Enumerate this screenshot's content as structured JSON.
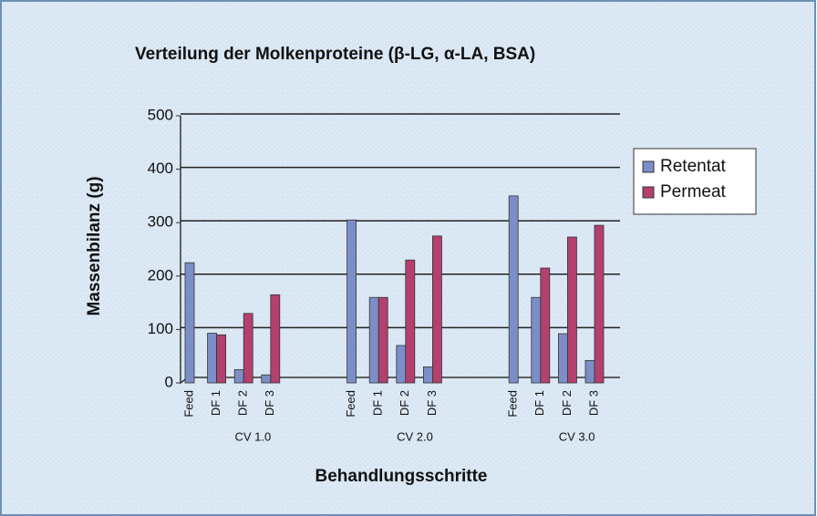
{
  "chart_data": {
    "type": "bar",
    "title": "Verteilung der Molkenproteine (β-LG, α-LA, BSA)",
    "y_label": "Massenbilanz (g)",
    "x_label": "Behandlungsschritte",
    "groups": [
      "CV 1.0",
      "CV 2.0",
      "CV 3.0"
    ],
    "categories": [
      "Feed",
      "DF 1",
      "DF 2",
      "DF 3",
      "Feed",
      "DF 1",
      "DF 2",
      "DF 3",
      "Feed",
      "DF 1",
      "DF 2",
      "DF 3"
    ],
    "series": [
      {
        "name": "Retentat",
        "color": "#7b8ec8",
        "values": [
          225,
          93,
          25,
          15,
          305,
          160,
          70,
          30,
          350,
          160,
          92,
          42
        ]
      },
      {
        "name": "Permeat",
        "color": "#b3406e",
        "values": [
          null,
          90,
          130,
          165,
          null,
          160,
          230,
          275,
          null,
          215,
          273,
          295
        ]
      }
    ],
    "ylim": [
      0,
      500
    ],
    "yticks": [
      0,
      100,
      200,
      300,
      400,
      500
    ],
    "grid": true,
    "legend": "right"
  }
}
